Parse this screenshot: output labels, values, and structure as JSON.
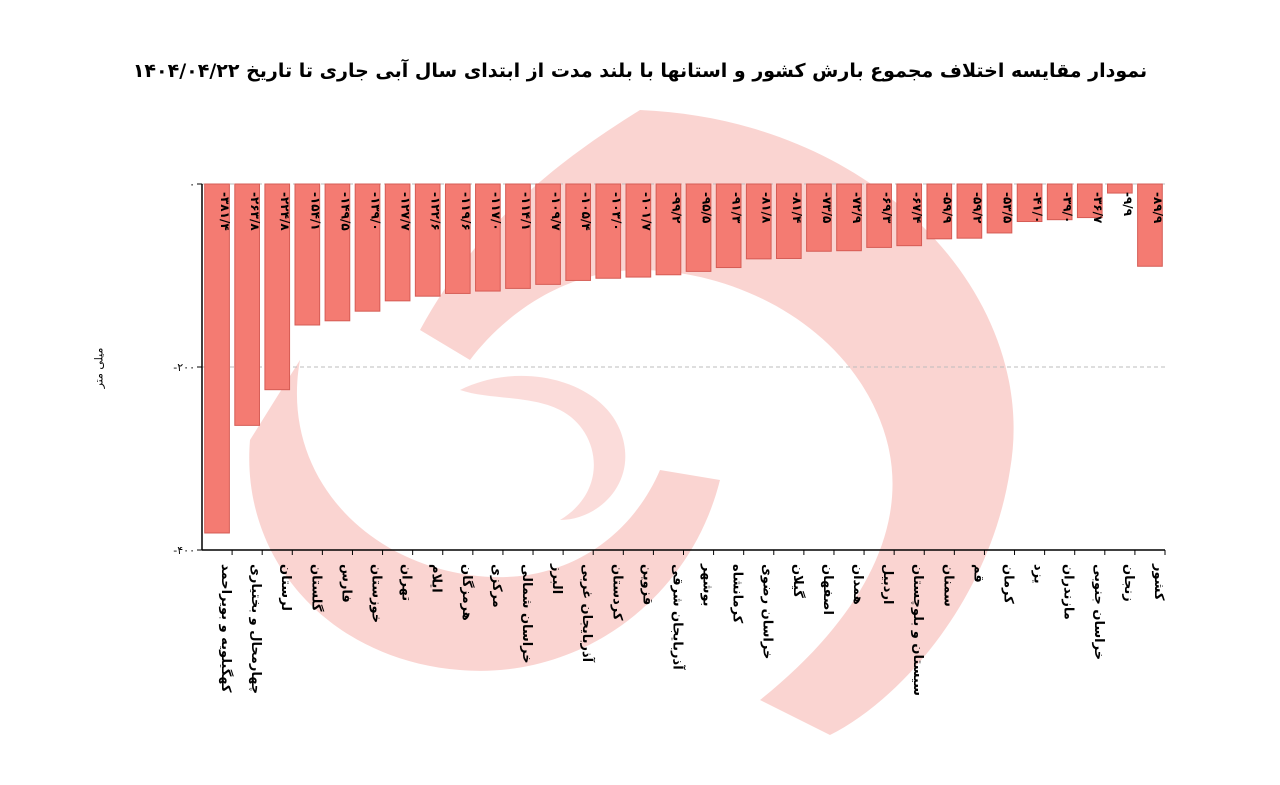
{
  "colors": {
    "bar_fill": "#f47b72",
    "bar_stroke": "#d55c55",
    "axis": "#000000",
    "grid": "#bdbdbd",
    "watermark": "#f8c5c2"
  },
  "watermark_icon": "crescent-logo-icon",
  "chart_data": {
    "type": "bar",
    "title": "نمودار مقایسه اختلاف مجموع بارش کشور و استانها با بلند مدت از ابتدای سال آبی جاری تا تاریخ ۱۴۰۴/۰۴/۲۲",
    "ylabel": "میلی متر",
    "ylim": [
      -400,
      0
    ],
    "yticks": [
      0,
      -200,
      -400
    ],
    "ytick_labels": [
      "۰",
      "-۲۰۰",
      "-۴۰۰"
    ],
    "grid": "horizontal dashed",
    "categories": [
      "کهگیلویه و بویراحمد",
      "چهارمحال و بختیاری",
      "لرستان",
      "گلستان",
      "فارس",
      "خوزستان",
      "تهران",
      "ایلام",
      "هرمزگان",
      "مرکزی",
      "خراسان شمالی",
      "البرز",
      "آذربایجان غربی",
      "کردستان",
      "قزوین",
      "آذربایجان شرقی",
      "بوشهر",
      "کرمانشاه",
      "خراسان رضوی",
      "گیلان",
      "اصفهان",
      "همدان",
      "اردبیل",
      "سیستان و بلوچستان",
      "سمنان",
      "قم",
      "کرمان",
      "یزد",
      "مازندران",
      "خراسان جنوبی",
      "زنجان",
      "کشور"
    ],
    "values": [
      -381.4,
      -263.8,
      -224.8,
      -154.1,
      -149.5,
      -139.0,
      -127.7,
      -122.6,
      -119.6,
      -117.0,
      -114.1,
      -109.7,
      -105.4,
      -103.0,
      -101.7,
      -99.2,
      -95.5,
      -91.3,
      -81.8,
      -81.4,
      -73.5,
      -72.9,
      -69.3,
      -67.4,
      -59.9,
      -59.2,
      -53.5,
      -41.0,
      -39.0,
      -36.7,
      -9.9,
      -89.9
    ],
    "value_labels": [
      "-۳۸۱/۴",
      "-۲۶۳/۸",
      "-۲۲۴/۸",
      "-۱۵۴/۱",
      "-۱۴۹/۵",
      "-۱۳۹/۰",
      "-۱۲۷/۷",
      "-۱۲۲/۶",
      "-۱۱۹/۶",
      "-۱۱۷/۰",
      "-۱۱۴/۱",
      "-۱۰۹/۷",
      "-۱۰۵/۴",
      "-۱۰۳/۰",
      "-۱۰۱/۷",
      "-۹۹/۲",
      "-۹۵/۵",
      "-۹۱/۳",
      "-۸۱/۸",
      "-۸۱/۴",
      "-۷۳/۵",
      "-۷۲/۹",
      "-۶۹/۳",
      "-۶۷/۴",
      "-۵۹/۹",
      "-۵۹/۲",
      "-۵۳/۵",
      "-۴۱/۰",
      "-۳۹/۰",
      "-۳۶/۷",
      "-۹/۹",
      "-۸۹/۹"
    ]
  }
}
